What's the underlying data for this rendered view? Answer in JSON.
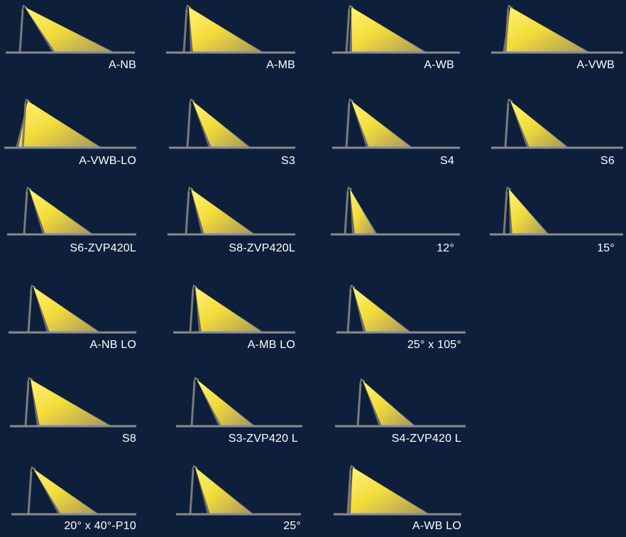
{
  "colors": {
    "background": "#0d1f3a",
    "beam_light": "#fff06a",
    "beam_core": "#f3de3c",
    "beam_fade": "#b7a457",
    "beam_edge": "#6d6f94",
    "pole": "#7a7a7a",
    "ground": "#8a8a8a",
    "label": "#ffffff"
  },
  "items": [
    {
      "label": "A-NB",
      "icon": "beam-narrow"
    },
    {
      "label": "A-MB",
      "icon": "beam-medium"
    },
    {
      "label": "A-WB",
      "icon": "beam-wide"
    },
    {
      "label": "A-VWB",
      "icon": "beam-very-wide"
    },
    {
      "label": "A-VWB-LO",
      "icon": "beam-very-wide-low"
    },
    {
      "label": "S3",
      "icon": "beam-s3"
    },
    {
      "label": "S4",
      "icon": "beam-s4"
    },
    {
      "label": "S6",
      "icon": "beam-s6"
    },
    {
      "label": "S6-ZVP420L",
      "icon": "beam-s6-zvp"
    },
    {
      "label": "S8-ZVP420L",
      "icon": "beam-s8-zvp"
    },
    {
      "label": "12°",
      "icon": "beam-12"
    },
    {
      "label": "15°",
      "icon": "beam-15"
    },
    {
      "label": "A-NB LO",
      "icon": "beam-narrow-low"
    },
    {
      "label": "A-MB LO",
      "icon": "beam-medium-low"
    },
    {
      "label": "25° x 105°",
      "icon": "beam-25x105"
    },
    {
      "label": "S8",
      "icon": "beam-s8"
    },
    {
      "label": "S3-ZVP420 L",
      "icon": "beam-s3-zvp"
    },
    {
      "label": "S4-ZVP420 L",
      "icon": "beam-s4-zvp"
    },
    {
      "label": "20° x 40°-P10",
      "icon": "beam-20x40"
    },
    {
      "label": "25°",
      "icon": "beam-25"
    },
    {
      "label": "A-WB LO",
      "icon": "beam-wide-low"
    }
  ]
}
